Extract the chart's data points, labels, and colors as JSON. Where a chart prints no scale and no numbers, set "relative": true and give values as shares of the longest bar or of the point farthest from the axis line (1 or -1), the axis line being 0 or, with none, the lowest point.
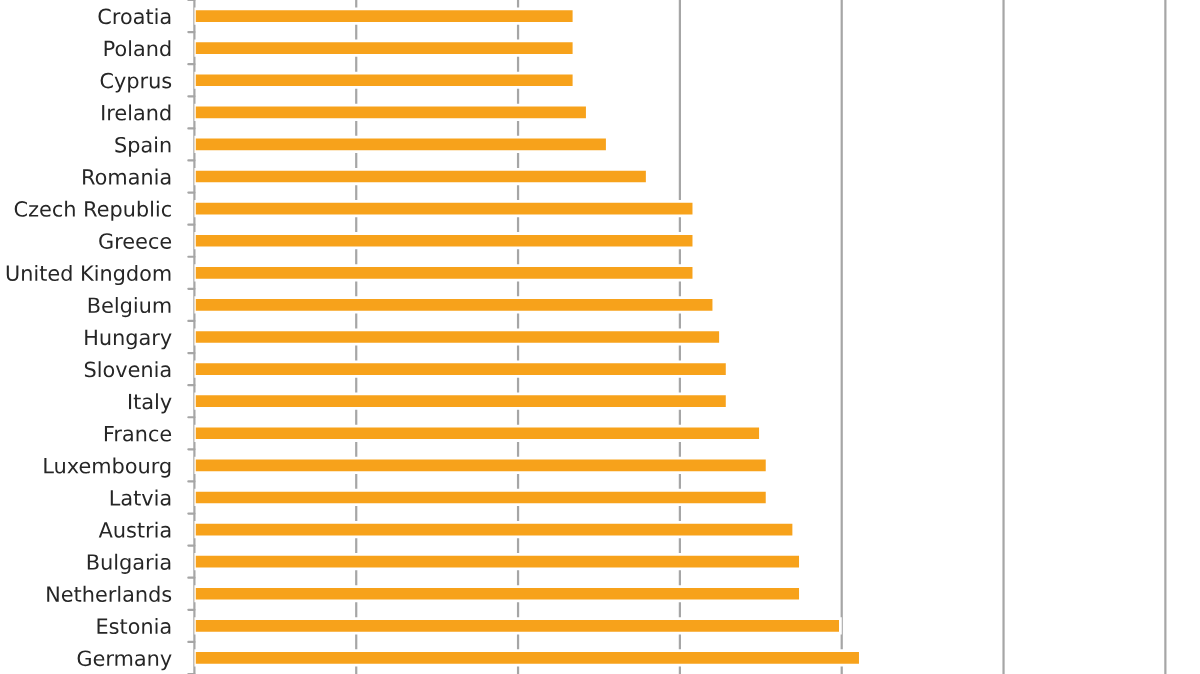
{
  "chart_data": {
    "type": "bar",
    "orientation": "horizontal",
    "relative": true,
    "grid": "x",
    "color": "#f7a21b",
    "categories": [
      "Croatia",
      "Poland",
      "Cyprus",
      "Ireland",
      "Spain",
      "Romania",
      "Czech Republic",
      "Greece",
      "United Kingdom",
      "Belgium",
      "Hungary",
      "Slovenia",
      "Italy",
      "France",
      "Luxembourg",
      "Latvia",
      "Austria",
      "Bulgaria",
      "Netherlands",
      "Estonia",
      "Germany"
    ],
    "values": [
      0.57,
      0.57,
      0.57,
      0.59,
      0.62,
      0.68,
      0.75,
      0.75,
      0.75,
      0.78,
      0.79,
      0.8,
      0.8,
      0.85,
      0.86,
      0.86,
      0.9,
      0.91,
      0.91,
      0.97,
      1.0
    ]
  }
}
